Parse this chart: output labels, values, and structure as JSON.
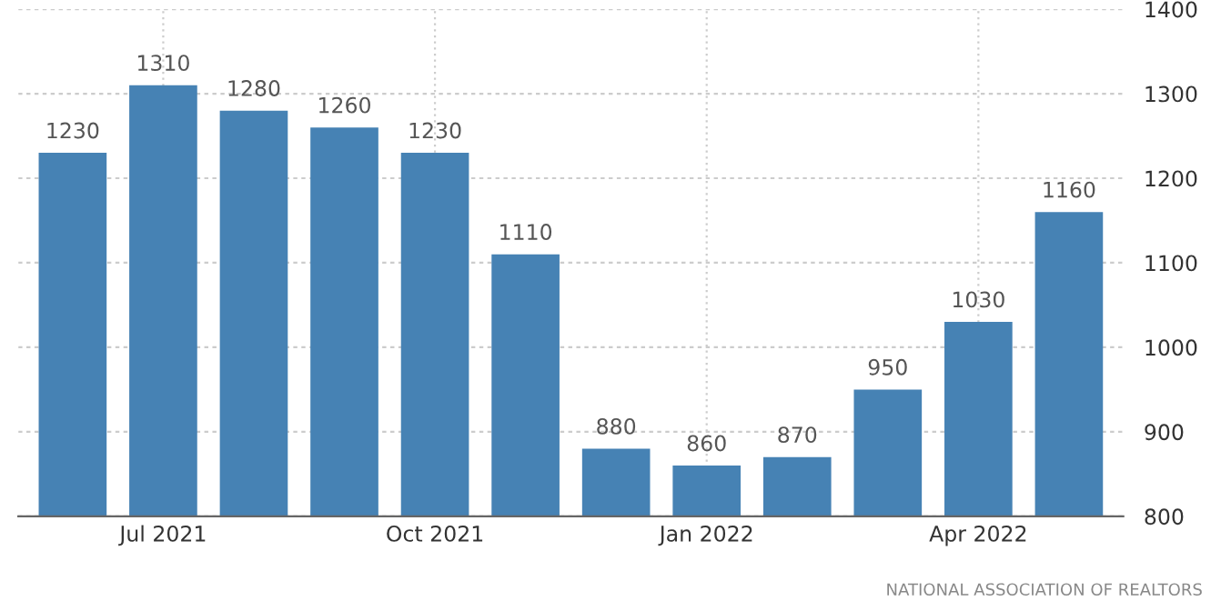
{
  "chart_data": {
    "type": "bar",
    "categories": [
      null,
      "Jul 2021",
      null,
      null,
      "Oct 2021",
      null,
      null,
      "Jan 2022",
      null,
      null,
      "Apr 2022",
      null
    ],
    "values": [
      1230,
      1310,
      1280,
      1260,
      1230,
      1110,
      880,
      860,
      870,
      950,
      1030,
      1160
    ],
    "color": "#4682b4",
    "ylim": [
      800,
      1400
    ],
    "yticks": [
      800,
      900,
      1000,
      1100,
      1200,
      1300,
      1400
    ],
    "grid": true,
    "data_labels": true,
    "annotations": [
      "NATIONAL ASSOCIATION OF REALTORS"
    ]
  }
}
